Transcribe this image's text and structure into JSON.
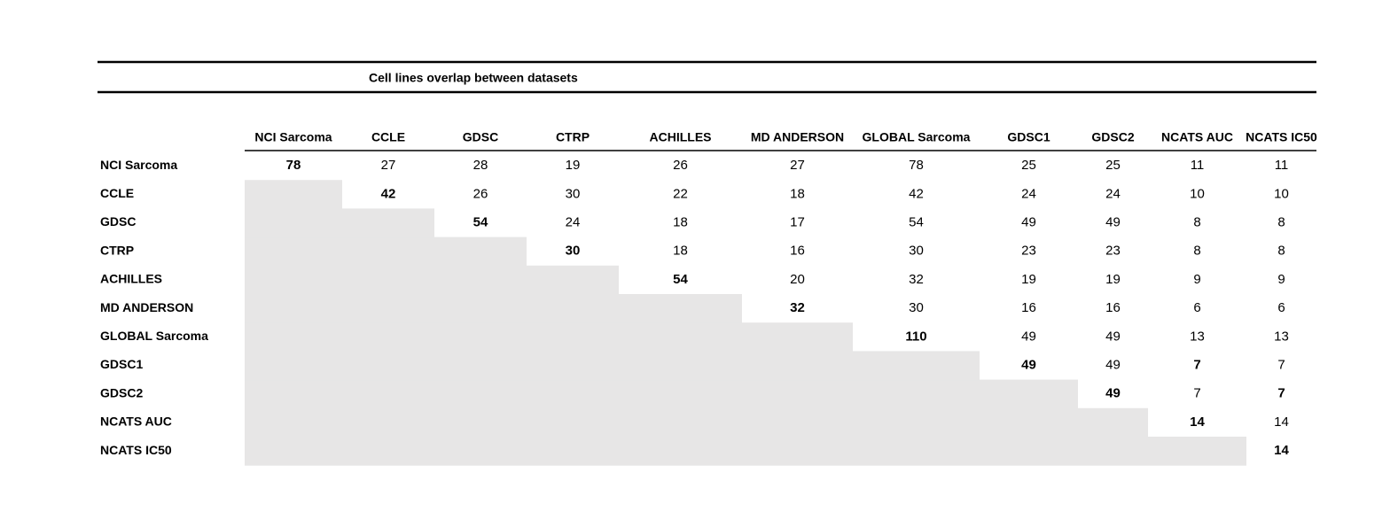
{
  "table": {
    "title": "Cell lines overlap between datasets",
    "columns": [
      "NCI Sarcoma",
      "CCLE",
      "GDSC",
      "CTRP",
      "ACHILLES",
      "MD ANDERSON",
      "GLOBAL Sarcoma",
      "GDSC1",
      "GDSC2",
      "NCATS AUC",
      "NCATS IC50"
    ],
    "rows": [
      {
        "label": "NCI Sarcoma",
        "values": [
          {
            "value": 78,
            "emphasis": "bold"
          },
          27,
          28,
          19,
          26,
          27,
          78,
          25,
          25,
          11,
          11
        ]
      },
      {
        "label": "CCLE",
        "values": [
          null,
          {
            "value": 42,
            "emphasis": "bold"
          },
          26,
          30,
          22,
          18,
          42,
          24,
          24,
          10,
          10
        ]
      },
      {
        "label": "GDSC",
        "values": [
          null,
          null,
          {
            "value": 54,
            "emphasis": "bold"
          },
          24,
          18,
          17,
          54,
          49,
          49,
          8,
          8
        ]
      },
      {
        "label": "CTRP",
        "values": [
          null,
          null,
          null,
          {
            "value": 30,
            "emphasis": "bold"
          },
          18,
          16,
          30,
          23,
          23,
          8,
          8
        ]
      },
      {
        "label": "ACHILLES",
        "values": [
          null,
          null,
          null,
          null,
          {
            "value": 54,
            "emphasis": "bold"
          },
          20,
          32,
          19,
          19,
          9,
          9
        ]
      },
      {
        "label": "MD ANDERSON",
        "values": [
          null,
          null,
          null,
          null,
          null,
          {
            "value": 32,
            "emphasis": "bold"
          },
          30,
          16,
          16,
          6,
          6
        ]
      },
      {
        "label": "GLOBAL Sarcoma",
        "values": [
          null,
          null,
          null,
          null,
          null,
          null,
          {
            "value": 110,
            "emphasis": "bold"
          },
          49,
          49,
          13,
          13
        ]
      },
      {
        "label": "GDSC1",
        "values": [
          null,
          null,
          null,
          null,
          null,
          null,
          null,
          {
            "value": 49,
            "emphasis": "bold"
          },
          49,
          {
            "value": 7,
            "emphasis": "bold"
          },
          7
        ]
      },
      {
        "label": "GDSC2",
        "values": [
          null,
          null,
          null,
          null,
          null,
          null,
          null,
          null,
          {
            "value": 49,
            "emphasis": "bold"
          },
          7,
          {
            "value": 7,
            "emphasis": "bold"
          }
        ]
      },
      {
        "label": "NCATS AUC",
        "values": [
          null,
          null,
          null,
          null,
          null,
          null,
          null,
          null,
          null,
          {
            "value": 14,
            "emphasis": "bold"
          },
          14
        ]
      },
      {
        "label": "NCATS IC50",
        "values": [
          null,
          null,
          null,
          null,
          null,
          null,
          null,
          null,
          null,
          null,
          {
            "value": 14,
            "emphasis": "bold"
          }
        ]
      }
    ]
  }
}
